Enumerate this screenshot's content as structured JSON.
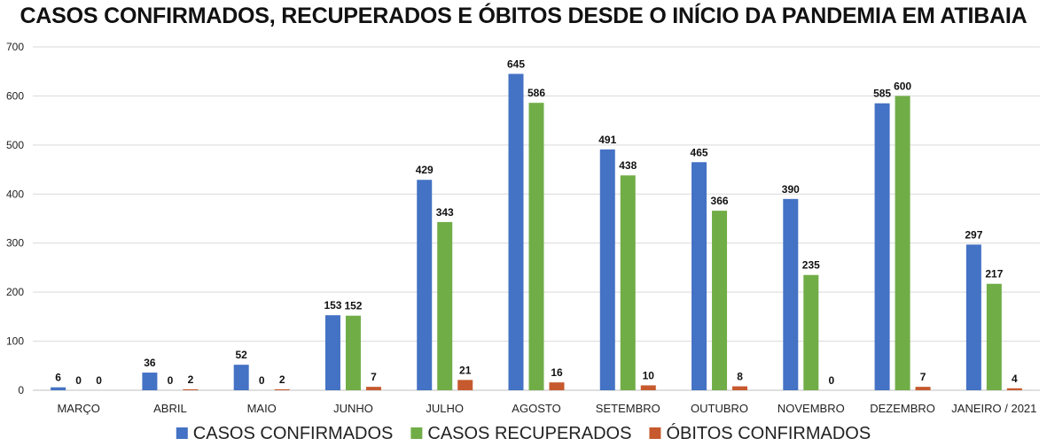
{
  "chart_data": {
    "type": "bar",
    "title": "CASOS CONFIRMADOS, RECUPERADOS E ÓBITOS DESDE O INÍCIO DA PANDEMIA EM ATIBAIA",
    "categories": [
      "MARÇO",
      "ABRIL",
      "MAIO",
      "JUNHO",
      "JULHO",
      "AGOSTO",
      "SETEMBRO",
      "OUTUBRO",
      "NOVEMBRO",
      "DEZEMBRO",
      "JANEIRO / 2021"
    ],
    "series": [
      {
        "name": "CASOS CONFIRMADOS",
        "color": "#4472C4",
        "values": [
          6,
          36,
          52,
          153,
          429,
          645,
          491,
          465,
          390,
          585,
          297
        ]
      },
      {
        "name": "CASOS RECUPERADOS",
        "color": "#70AD47",
        "values": [
          0,
          0,
          0,
          152,
          343,
          586,
          438,
          366,
          235,
          600,
          217
        ]
      },
      {
        "name": "ÓBITOS CONFIRMADOS",
        "color": "#C65A2E",
        "values": [
          0,
          2,
          2,
          7,
          21,
          16,
          10,
          8,
          0,
          7,
          4
        ]
      }
    ],
    "data_labels": [
      [
        "6",
        "0",
        "0"
      ],
      [
        "36",
        "0",
        "2"
      ],
      [
        "52",
        "0",
        "2"
      ],
      [
        "153",
        "152",
        "7"
      ],
      [
        "429",
        "343",
        "21"
      ],
      [
        "645",
        "586",
        "16"
      ],
      [
        "491",
        "438",
        "10"
      ],
      [
        "465",
        "366",
        "8"
      ],
      [
        "390",
        "235",
        "0"
      ],
      [
        "585",
        "600",
        "7"
      ],
      [
        "297",
        "217",
        "4"
      ]
    ],
    "yticks": [
      "0",
      "100",
      "200",
      "300",
      "400",
      "500",
      "600",
      "700"
    ],
    "ylim": [
      0,
      700
    ],
    "xlabel": "",
    "ylabel": "",
    "grid": true,
    "legend": "bottom-center"
  }
}
